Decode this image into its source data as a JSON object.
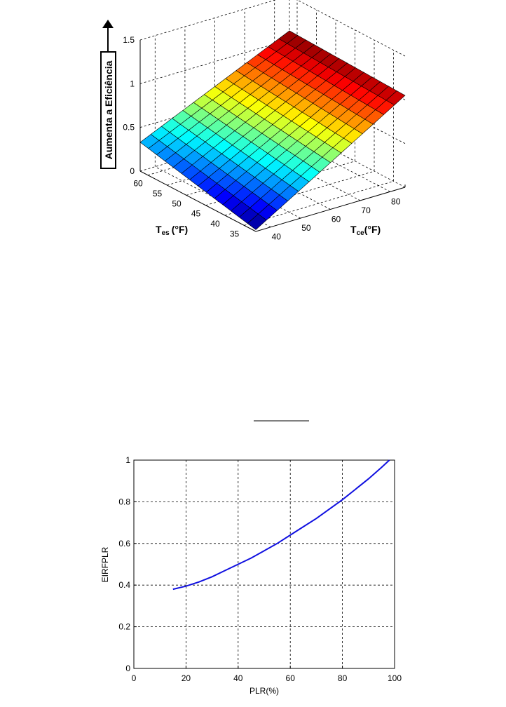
{
  "chart_data": [
    {
      "type": "surface",
      "x_axis": {
        "label_main": "T",
        "label_sub": "ce",
        "label_unit": "(°F)",
        "ticks": [
          40,
          50,
          60,
          70,
          80
        ],
        "range": [
          35,
          85
        ]
      },
      "y_axis": {
        "label_main": "T",
        "label_sub": "es",
        "label_unit": "(°F)",
        "ticks": [
          35,
          40,
          45,
          50,
          55,
          60
        ],
        "range": [
          32,
          62
        ]
      },
      "z_axis": {
        "ticks": [
          "0",
          "0.5",
          "1",
          "1.5"
        ],
        "range": [
          0,
          1.5
        ]
      },
      "annotation": "Aumenta a Eficiência",
      "grid": true,
      "colormap": "jet",
      "surface_corners": [
        {
          "tce": 35,
          "tes": 62,
          "z": 0.33
        },
        {
          "tce": 35,
          "tes": 32,
          "z": 0.02
        },
        {
          "tce": 85,
          "tes": 62,
          "z": 1.1
        },
        {
          "tce": 85,
          "tes": 32,
          "z": 1.05
        }
      ]
    },
    {
      "type": "line",
      "xlabel": "PLR(%)",
      "ylabel": "EIRFPLR",
      "xlim": [
        0,
        100
      ],
      "ylim": [
        0,
        1
      ],
      "xticks": [
        "0",
        "20",
        "40",
        "60",
        "80",
        "100"
      ],
      "yticks": [
        "0",
        "0.2",
        "0.4",
        "0.6",
        "0.8",
        "1"
      ],
      "grid": true,
      "line_color": "#1010e0",
      "series": [
        {
          "x": [
            15,
            20,
            25,
            30,
            35,
            40,
            45,
            50,
            55,
            60,
            65,
            70,
            75,
            80,
            85,
            90,
            95,
            98
          ],
          "y": [
            0.38,
            0.395,
            0.415,
            0.44,
            0.47,
            0.5,
            0.53,
            0.565,
            0.6,
            0.64,
            0.68,
            0.72,
            0.765,
            0.81,
            0.86,
            0.91,
            0.965,
            1.0
          ]
        }
      ]
    }
  ],
  "separator_line": true
}
